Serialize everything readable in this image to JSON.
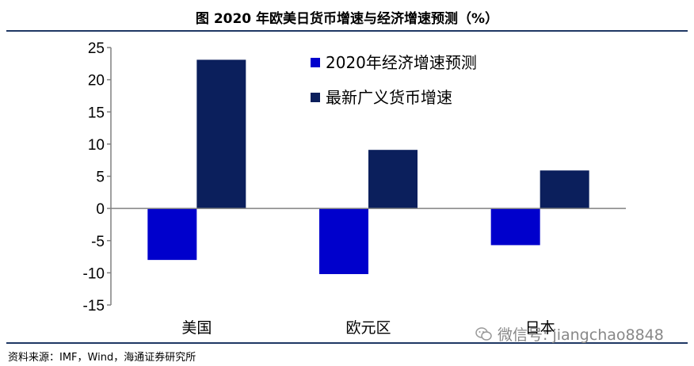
{
  "header": {
    "title": "图  2020 年欧美日货币增速与经济增速预测（%）"
  },
  "source_note": "资料来源：IMF，Wind，海通证券研究所",
  "watermark": {
    "text": "微信号: jiangchao8848",
    "icon": "wechat-icon"
  },
  "colors": {
    "series1": "#0000cc",
    "series2": "#0b1f5c",
    "axis": "#808080",
    "rule": "#1f3864"
  },
  "chart_data": {
    "type": "bar",
    "title": "",
    "xlabel": "",
    "ylabel": "",
    "categories": [
      "美国",
      "欧元区",
      "日本"
    ],
    "ylim": [
      -15,
      25
    ],
    "yticks": [
      25,
      20,
      15,
      10,
      5,
      0,
      -5,
      -10,
      -15
    ],
    "grid": false,
    "legend_position": "top-right",
    "series": [
      {
        "name": "2020年经济增速预测",
        "values": [
          -8.0,
          -10.2,
          -5.7
        ]
      },
      {
        "name": "最新广义货币增速",
        "values": [
          23.1,
          9.1,
          5.9
        ]
      }
    ]
  }
}
